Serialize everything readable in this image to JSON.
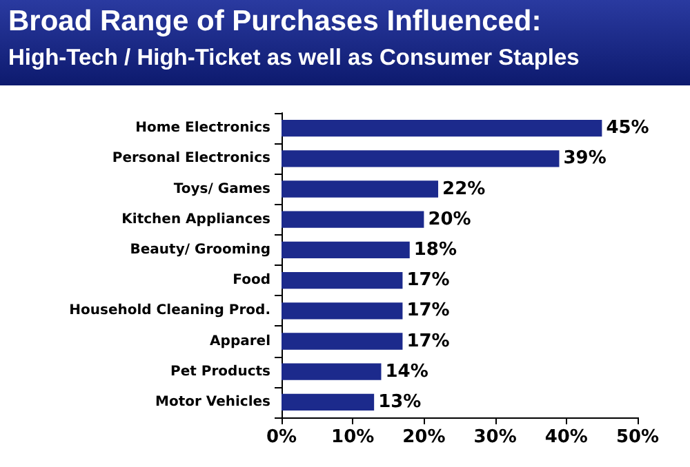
{
  "chart_data": {
    "type": "bar",
    "orientation": "horizontal",
    "title": "Broad Range of Purchases Influenced:",
    "subtitle": "High-Tech / High-Ticket as well as Consumer Staples",
    "categories": [
      "Home Electronics",
      "Personal Electronics",
      "Toys/ Games",
      "Kitchen Appliances",
      "Beauty/ Grooming",
      "Food",
      "Household Cleaning Prod.",
      "Apparel",
      "Pet Products",
      "Motor Vehicles"
    ],
    "values": [
      45,
      39,
      22,
      20,
      18,
      17,
      17,
      17,
      14,
      13
    ],
    "value_labels": [
      "45%",
      "39%",
      "22%",
      "20%",
      "18%",
      "17%",
      "17%",
      "17%",
      "14%",
      "13%"
    ],
    "color": "#1c2a8c",
    "xlim": [
      0,
      50
    ],
    "xticks": [
      {
        "value": 0,
        "label": "0%"
      },
      {
        "value": 10,
        "label": "10%"
      },
      {
        "value": 20,
        "label": "20%"
      },
      {
        "value": 30,
        "label": "30%"
      },
      {
        "value": 40,
        "label": "40%"
      },
      {
        "value": 50,
        "label": "50%"
      }
    ],
    "grid": false
  }
}
